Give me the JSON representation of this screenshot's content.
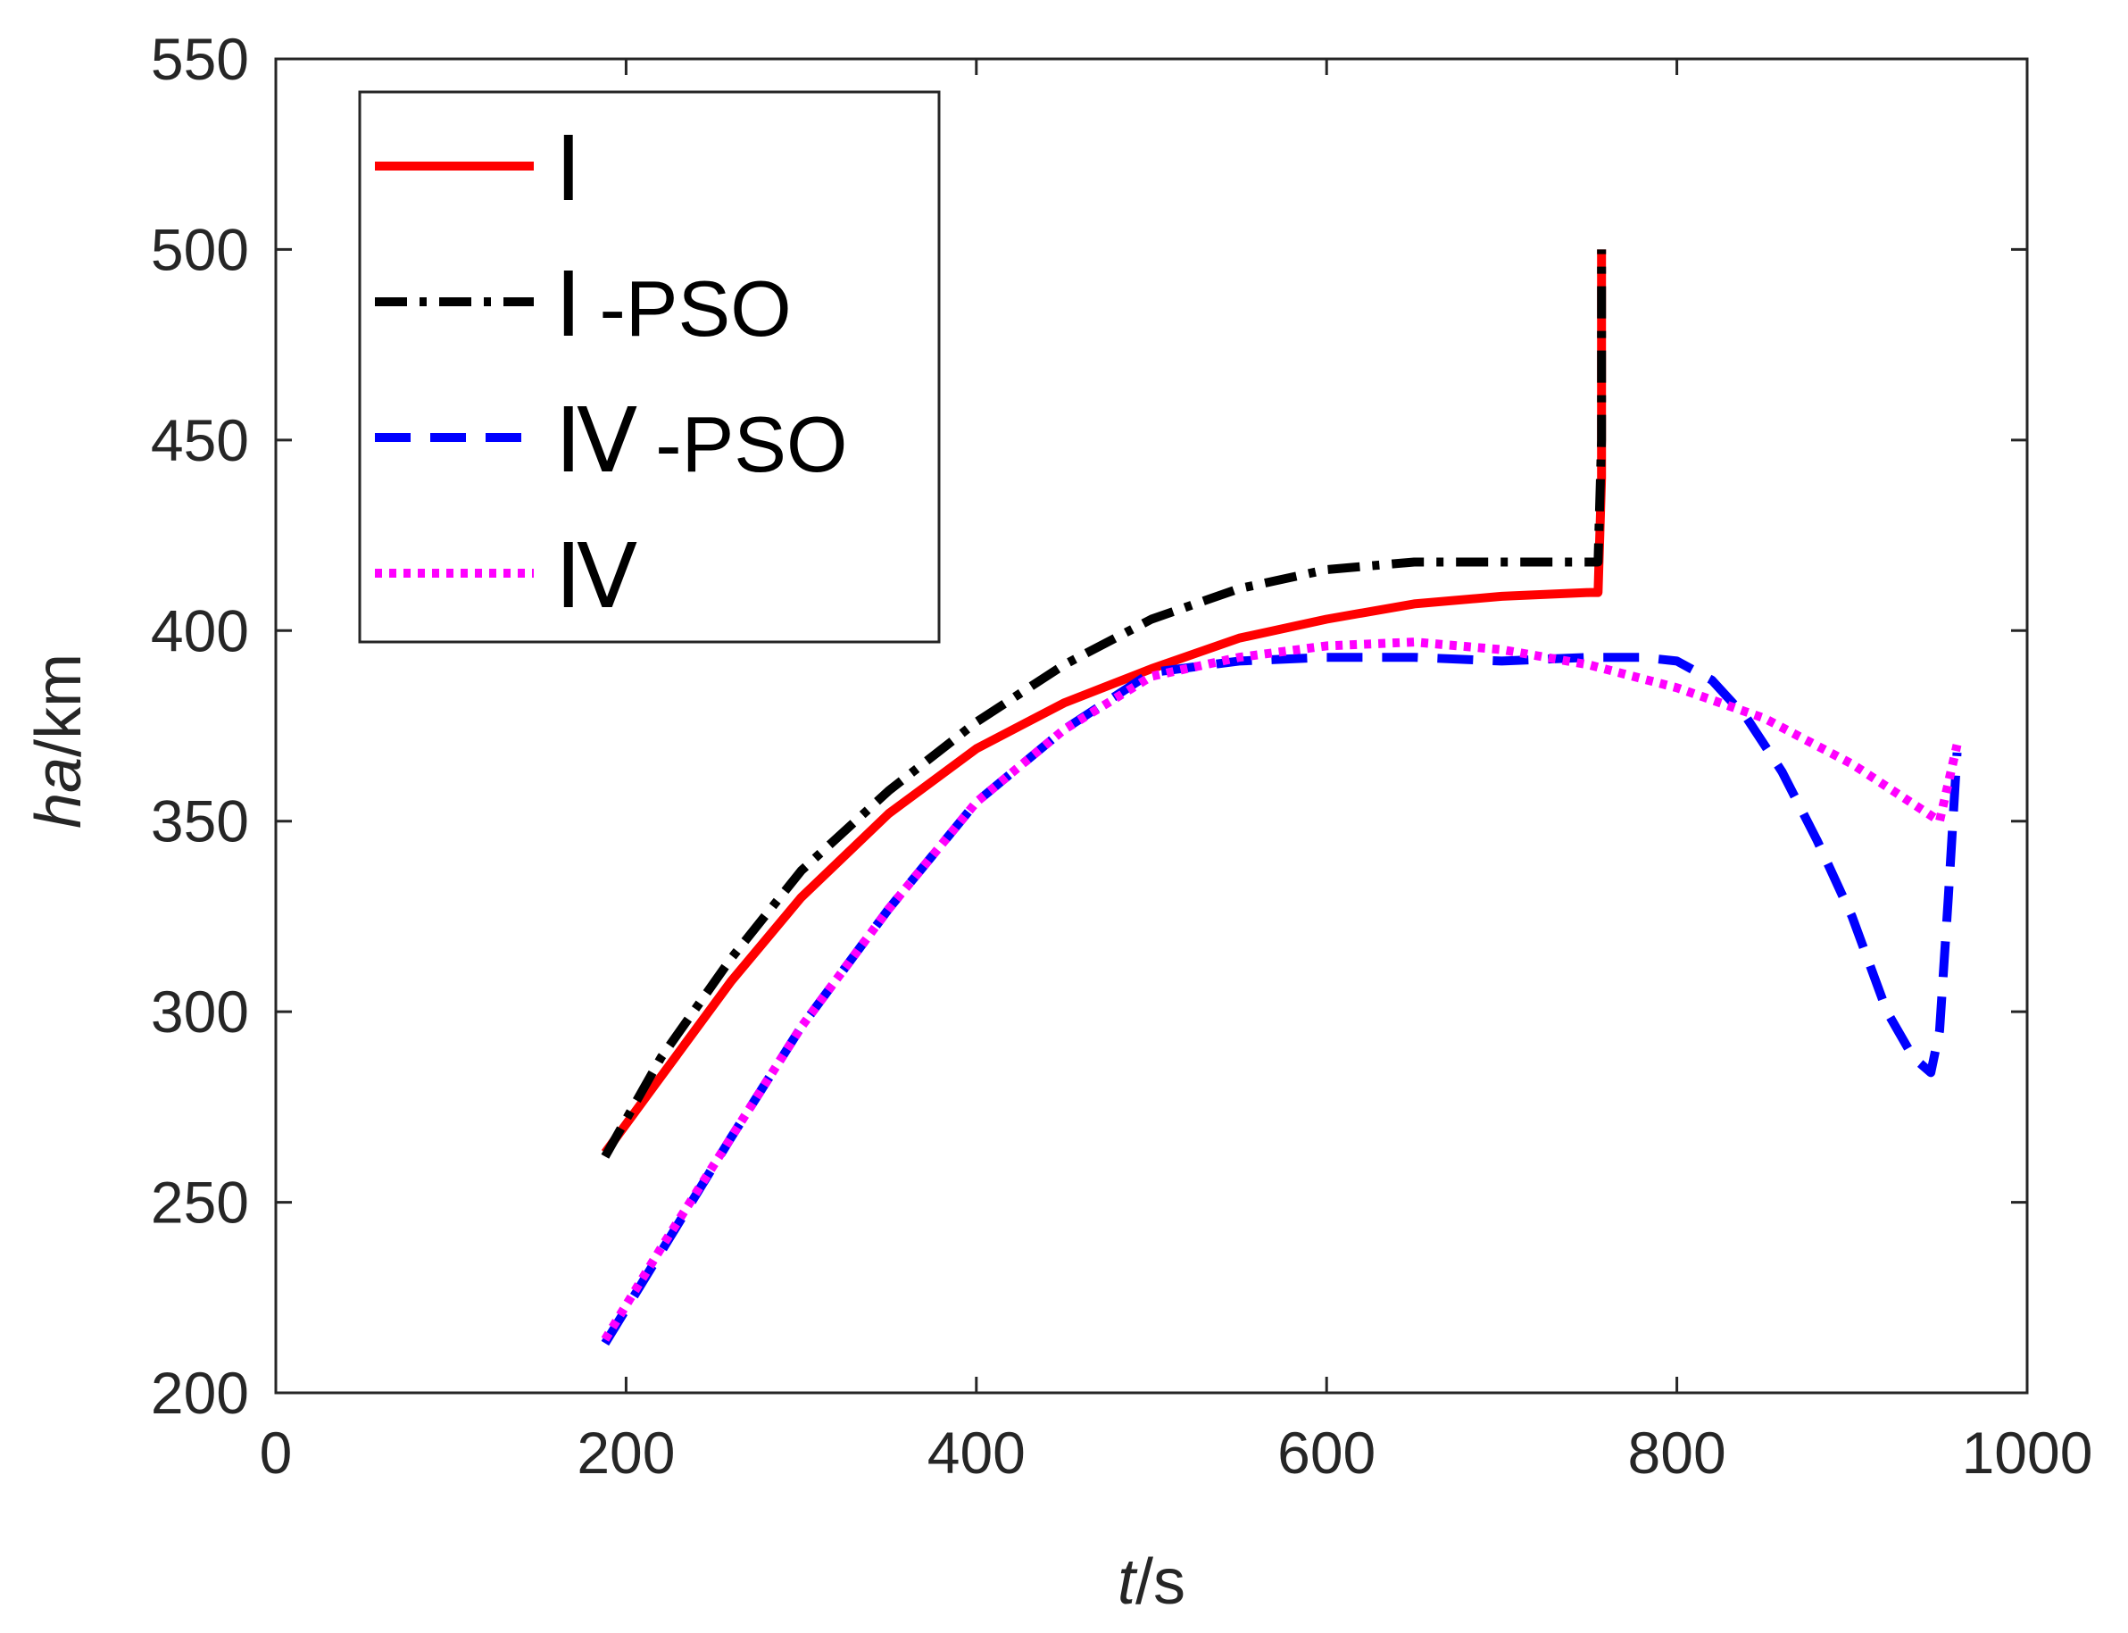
{
  "chart_data": {
    "type": "line",
    "title": "",
    "xlabel": {
      "italic": "t",
      "rest": "/s"
    },
    "ylabel": {
      "italic": "ha",
      "rest": "/km"
    },
    "xlim": [
      0,
      1000
    ],
    "ylim": [
      200,
      550
    ],
    "xticks": [
      0,
      200,
      400,
      600,
      800,
      1000
    ],
    "yticks": [
      200,
      250,
      300,
      350,
      400,
      450,
      500,
      550
    ],
    "grid": false,
    "legend_position": "top-left",
    "series": [
      {
        "name": "Ⅰ",
        "name_roman": "Ⅰ",
        "name_suffix": "",
        "color": "#ff0000",
        "style": "solid",
        "x": [
          188,
          220,
          260,
          300,
          350,
          400,
          450,
          500,
          550,
          600,
          650,
          700,
          750,
          755,
          757,
          757
        ],
        "y": [
          263,
          283,
          308,
          330,
          352,
          369,
          381,
          390,
          398,
          403,
          407,
          409,
          410,
          410,
          440,
          500
        ]
      },
      {
        "name": "Ⅰ-PSO",
        "name_roman": "Ⅰ",
        "name_suffix": "-PSO",
        "color": "#000000",
        "style": "dashdot",
        "x": [
          188,
          220,
          260,
          300,
          350,
          400,
          450,
          500,
          550,
          600,
          650,
          700,
          750,
          755,
          757,
          757
        ],
        "y": [
          262,
          288,
          314,
          337,
          358,
          376,
          391,
          403,
          411,
          416,
          418,
          418,
          418,
          418,
          450,
          500
        ]
      },
      {
        "name": "Ⅳ-PSO",
        "name_roman": "Ⅳ",
        "name_suffix": "-PSO",
        "color": "#0000ff",
        "style": "dashed",
        "x": [
          188,
          220,
          260,
          300,
          350,
          400,
          450,
          500,
          550,
          600,
          650,
          700,
          750,
          780,
          800,
          820,
          840,
          860,
          880,
          900,
          920,
          935,
          945,
          950,
          955,
          960
        ],
        "y": [
          213,
          237,
          267,
          296,
          327,
          355,
          374,
          389,
          392,
          393,
          393,
          392,
          393,
          393,
          392,
          387,
          377,
          363,
          345,
          325,
          300,
          288,
          284,
          295,
          330,
          368
        ]
      },
      {
        "name": "Ⅳ",
        "name_roman": "Ⅳ",
        "name_suffix": "",
        "color": "#ff00ff",
        "style": "dotted",
        "x": [
          188,
          220,
          260,
          300,
          350,
          400,
          450,
          500,
          550,
          600,
          650,
          700,
          750,
          800,
          850,
          900,
          950,
          960
        ],
        "y": [
          214,
          238,
          267,
          296,
          327,
          355,
          374,
          388,
          393,
          396,
          397,
          395,
          391,
          385,
          377,
          365,
          350,
          370
        ]
      }
    ]
  }
}
